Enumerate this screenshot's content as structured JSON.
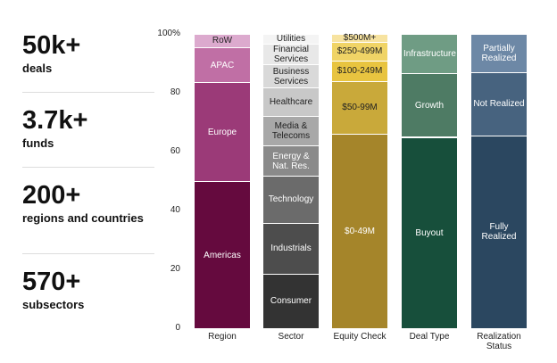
{
  "stats": [
    {
      "value": "50k+",
      "label": "deals"
    },
    {
      "value": "3.7k+",
      "label": "funds"
    },
    {
      "value": "200+",
      "label": "regions and countries"
    },
    {
      "value": "570+",
      "label": "subsectors"
    }
  ],
  "chart_data": {
    "type": "stacked-bar",
    "ylim": [
      0,
      100
    ],
    "yticks": [
      0,
      20,
      40,
      60,
      80,
      {
        "value": 100,
        "label": "100%"
      }
    ],
    "grid": false,
    "columns": [
      {
        "label": "Region",
        "segments": [
          {
            "name": "Americas",
            "value": 50,
            "color": "#650a3e"
          },
          {
            "name": "Europe",
            "value": 33.5,
            "color": "#9b3a78"
          },
          {
            "name": "APAC",
            "value": 12,
            "color": "#c06fa5"
          },
          {
            "name": "RoW",
            "value": 4.5,
            "color": "#dcaace"
          }
        ]
      },
      {
        "label": "Sector",
        "segments": [
          {
            "name": "Consumer",
            "value": 18.5,
            "color": "#333333"
          },
          {
            "name": "Industrials",
            "value": 17.3,
            "color": "#4d4d4d"
          },
          {
            "name": "Technology",
            "value": 16,
            "color": "#6b6b6b"
          },
          {
            "name": "Energy & Nat. Res.",
            "value": 10.2,
            "color": "#8a8a8a"
          },
          {
            "name": "Media & Telecoms",
            "value": 10,
            "color": "#a8a8a8"
          },
          {
            "name": "Healthcare",
            "value": 9.8,
            "color": "#c8c8c8"
          },
          {
            "name": "Business Services",
            "value": 7.9,
            "color": "#d9d9d9"
          },
          {
            "name": "Financial Services",
            "value": 7,
            "color": "#e8e8e8"
          },
          {
            "name": "Utilities",
            "value": 3.3,
            "color": "#f4f4f4"
          }
        ]
      },
      {
        "label": "Equity Check",
        "segments": [
          {
            "name": "$0-49M",
            "value": 66,
            "color": "#a5852a"
          },
          {
            "name": "$50-99M",
            "value": 18,
            "color": "#c9a93a"
          },
          {
            "name": "$100-249M",
            "value": 7,
            "color": "#e8c440"
          },
          {
            "name": "$250-499M",
            "value": 6.3,
            "color": "#f0d466"
          },
          {
            "name": "$500M+",
            "value": 2.7,
            "color": "#f7e3a0"
          }
        ]
      },
      {
        "label": "Deal Type",
        "segments": [
          {
            "name": "Buyout",
            "value": 65,
            "color": "#174f3b"
          },
          {
            "name": "Growth",
            "value": 21.7,
            "color": "#4e7b64"
          },
          {
            "name": "Infrastructure",
            "value": 13.3,
            "color": "#6f9c84"
          }
        ]
      },
      {
        "label": "Realization Status",
        "segments": [
          {
            "name": "Fully Realized",
            "value": 65.5,
            "color": "#2b4760"
          },
          {
            "name": "Not Realized",
            "value": 21.5,
            "color": "#47637f"
          },
          {
            "name": "Partially Realized",
            "value": 13,
            "color": "#6d88a6"
          }
        ]
      }
    ]
  }
}
